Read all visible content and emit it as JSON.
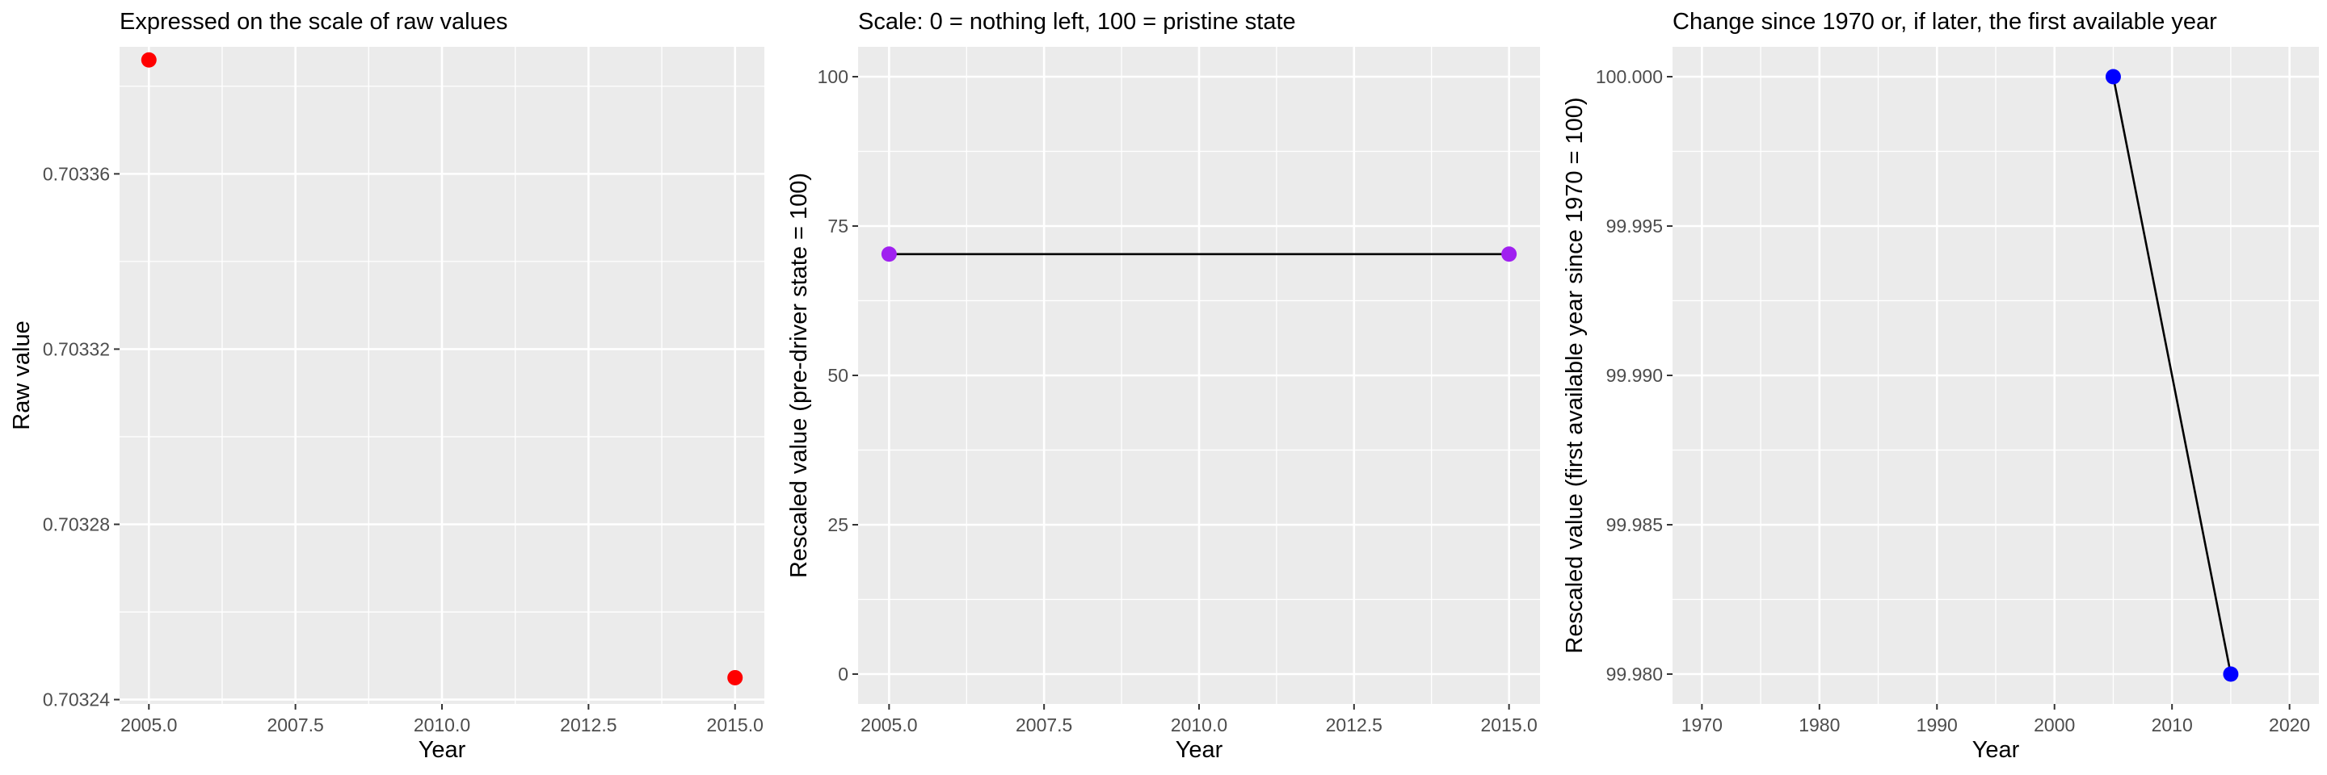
{
  "chart_data": [
    {
      "type": "scatter",
      "title": "Expressed on the scale of raw values",
      "xlabel": "Year",
      "ylabel": "Raw value",
      "xlim": [
        2004.5,
        2015.5
      ],
      "ylim": [
        0.703239,
        0.703389
      ],
      "xticks": [
        2005,
        2007.5,
        2010,
        2012.5,
        2015
      ],
      "xtick_labels": [
        "2005.0",
        "2007.5",
        "2010.0",
        "2012.5",
        "2015.0"
      ],
      "yticks": [
        0.70324,
        0.70328,
        0.70332,
        0.70336
      ],
      "ytick_labels": [
        "0.70324",
        "0.70328",
        "0.70332",
        "0.70336"
      ],
      "x": [
        2005,
        2015
      ],
      "y": [
        0.703386,
        0.703245
      ],
      "point_color": "#ff0000",
      "connect_points": false
    },
    {
      "type": "line",
      "title": "Scale: 0 = nothing left, 100 = pristine state",
      "xlabel": "Year",
      "ylabel": "Rescaled value (pre-driver state = 100)",
      "xlim": [
        2004.5,
        2015.5
      ],
      "ylim": [
        -5,
        105
      ],
      "xticks": [
        2005,
        2007.5,
        2010,
        2012.5,
        2015
      ],
      "xtick_labels": [
        "2005.0",
        "2007.5",
        "2010.0",
        "2012.5",
        "2015.0"
      ],
      "yticks": [
        0,
        25,
        50,
        75,
        100
      ],
      "ytick_labels": [
        "0",
        "25",
        "50",
        "75",
        "100"
      ],
      "x": [
        2005,
        2015
      ],
      "y": [
        70.3,
        70.3
      ],
      "point_color": "#a020f0",
      "connect_points": true
    },
    {
      "type": "line",
      "title": "Change since 1970 or, if later, the first available year",
      "xlabel": "Year",
      "ylabel": "Rescaled value (first available year since 1970 = 100)",
      "xlim": [
        1967.5,
        2022.5
      ],
      "ylim": [
        99.979,
        100.001
      ],
      "xticks": [
        1970,
        1980,
        1990,
        2000,
        2010,
        2020
      ],
      "xtick_labels": [
        "1970",
        "1980",
        "1990",
        "2000",
        "2010",
        "2020"
      ],
      "yticks": [
        99.98,
        99.985,
        99.99,
        99.995,
        100.0
      ],
      "ytick_labels": [
        "99.980",
        "99.985",
        "99.990",
        "99.995",
        "100.000"
      ],
      "x": [
        2005,
        2015
      ],
      "y": [
        100.0,
        99.98
      ],
      "point_color": "#0000ff",
      "connect_points": true
    }
  ]
}
